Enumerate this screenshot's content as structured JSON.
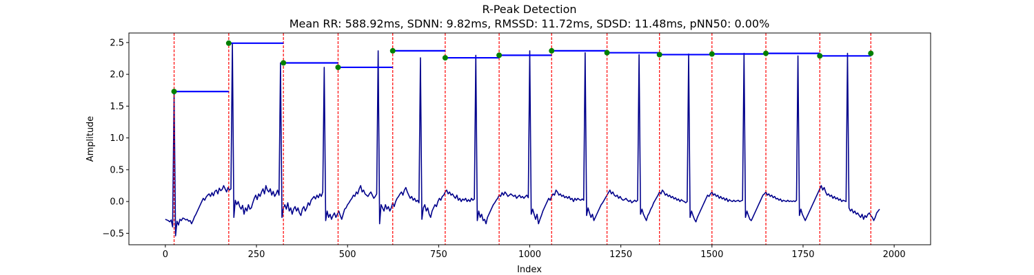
{
  "chart_data": {
    "type": "line",
    "title": "R-Peak Detection",
    "subtitle": "Mean RR: 588.92ms, SDNN: 9.82ms, RMSSD: 11.72ms, SDSD: 11.48ms, pNN50: 0.00%",
    "xlabel": "Index",
    "ylabel": "Amplitude",
    "xlim": [
      -100,
      2100
    ],
    "ylim": [
      -0.68,
      2.65
    ],
    "xticks": [
      0,
      250,
      500,
      750,
      1000,
      1250,
      1500,
      1750,
      2000
    ],
    "yticks": [
      -0.5,
      0.0,
      0.5,
      1.0,
      1.5,
      2.0,
      2.5
    ],
    "grid": false,
    "legend": "none",
    "colors": {
      "signal": "#00008b",
      "peak_line": "#ff0000",
      "peak_marker": "#008000",
      "rr_line": "#0000ff"
    },
    "signal": {
      "x_start": 0,
      "x_end": 2000,
      "step": 4,
      "y": [
        -0.28,
        -0.29,
        -0.3,
        -0.32,
        -0.29,
        -0.4,
        1.73,
        -0.54,
        -0.31,
        -0.37,
        -0.28,
        -0.3,
        -0.26,
        -0.27,
        -0.29,
        -0.28,
        -0.31,
        -0.3,
        -0.35,
        -0.3,
        -0.24,
        -0.2,
        -0.15,
        -0.1,
        -0.05,
        0.0,
        0.05,
        0.02,
        0.07,
        0.1,
        0.12,
        0.08,
        0.14,
        0.09,
        0.16,
        0.18,
        0.12,
        0.21,
        0.17,
        0.19,
        0.25,
        0.2,
        0.15,
        0.22,
        0.18,
        0.2,
        2.49,
        -0.25,
        0.02,
        -0.05,
        0.0,
        -0.08,
        -0.12,
        -0.06,
        -0.2,
        -0.1,
        -0.15,
        -0.05,
        -0.12,
        -0.1,
        -0.02,
        0.05,
        0.1,
        0.03,
        0.12,
        0.08,
        0.15,
        0.2,
        0.12,
        0.25,
        0.18,
        0.15,
        0.2,
        0.1,
        0.16,
        0.08,
        0.12,
        0.18,
        0.1,
        2.18,
        -0.25,
        -0.1,
        -0.05,
        -0.12,
        -0.02,
        -0.15,
        -0.1,
        -0.2,
        -0.12,
        -0.08,
        -0.15,
        -0.1,
        -0.18,
        -0.22,
        -0.12,
        -0.08,
        -0.15,
        -0.1,
        -0.02,
        -0.06,
        0.02,
        0.05,
        0.08,
        0.04,
        0.1,
        0.06,
        0.12,
        0.08,
        0.15,
        2.11,
        -0.3,
        -0.15,
        -0.25,
        -0.2,
        -0.28,
        -0.22,
        -0.18,
        -0.25,
        -0.2,
        -0.15,
        -0.22,
        -0.28,
        -0.2,
        -0.12,
        -0.1,
        -0.05,
        -0.02,
        0.02,
        0.05,
        0.1,
        0.08,
        0.15,
        0.12,
        0.2,
        0.25,
        0.15,
        0.18,
        0.12,
        0.1,
        0.08,
        0.12,
        0.15,
        0.1,
        0.05,
        0.08,
        0.12,
        2.37,
        -0.35,
        -0.05,
        -0.1,
        -0.15,
        -0.05,
        -0.12,
        -0.08,
        -0.15,
        -0.1,
        -0.02,
        -0.08,
        0.0,
        0.05,
        0.08,
        0.12,
        0.15,
        0.1,
        0.18,
        0.22,
        0.15,
        0.1,
        0.05,
        0.08,
        0.02,
        0.05,
        0.0,
        0.02,
        -0.02,
        2.26,
        -0.28,
        -0.1,
        -0.05,
        -0.15,
        -0.1,
        -0.2,
        -0.25,
        -0.15,
        -0.1,
        -0.05,
        -0.08,
        0.0,
        0.05,
        0.02,
        0.08,
        0.1,
        0.15,
        0.18,
        0.12,
        0.15,
        0.1,
        0.12,
        0.08,
        0.05,
        0.1,
        0.02,
        0.05,
        0.0,
        0.04,
        0.02,
        0.05,
        0.0,
        0.03,
        0.0,
        0.05,
        0.02,
        0.04,
        2.3,
        -0.3,
        -0.15,
        -0.25,
        -0.2,
        -0.3,
        -0.28,
        -0.35,
        -0.25,
        -0.2,
        -0.15,
        -0.1,
        -0.05,
        -0.02,
        0.02,
        0.05,
        0.1,
        0.08,
        0.14,
        0.1,
        0.15,
        0.12,
        0.08,
        0.1,
        0.12,
        0.1,
        0.08,
        0.1,
        0.05,
        0.08,
        0.1,
        0.06,
        0.08,
        0.05,
        0.08,
        0.1,
        0.06,
        2.37,
        -0.2,
        -0.12,
        -0.2,
        -0.28,
        -0.2,
        -0.35,
        -0.28,
        -0.22,
        -0.15,
        -0.1,
        -0.05,
        0.0,
        0.05,
        0.02,
        0.08,
        0.12,
        0.1,
        0.18,
        0.15,
        0.1,
        0.12,
        0.08,
        0.1,
        0.06,
        0.08,
        0.05,
        0.08,
        0.03,
        0.05,
        0.0,
        0.05,
        0.02,
        0.05,
        0.03,
        0.02,
        0.04,
        0.02,
        2.34,
        -0.22,
        -0.1,
        -0.18,
        -0.25,
        -0.2,
        -0.3,
        -0.25,
        -0.2,
        -0.15,
        -0.1,
        -0.05,
        -0.02,
        0.02,
        0.06,
        0.1,
        0.14,
        0.18,
        0.12,
        0.15,
        0.1,
        0.08,
        0.1,
        0.05,
        0.08,
        0.04,
        0.02,
        0.03,
        0.05,
        0.02,
        0.0,
        0.02,
        -0.02,
        0.0,
        0.02,
        0.0,
        0.02,
        2.31,
        -0.2,
        -0.12,
        -0.2,
        -0.25,
        -0.3,
        -0.22,
        -0.18,
        -0.12,
        -0.08,
        -0.02,
        0.02,
        0.06,
        0.1,
        0.15,
        0.12,
        0.18,
        0.15,
        0.1,
        0.12,
        0.08,
        0.1,
        0.06,
        0.08,
        0.04,
        0.06,
        0.02,
        0.04,
        0.0,
        0.03,
        0.01,
        0.0,
        -0.02,
        0.0,
        2.32,
        -0.25,
        -0.15,
        -0.22,
        -0.28,
        -0.32,
        -0.25,
        -0.2,
        -0.15,
        -0.1,
        -0.05,
        0.0,
        0.05,
        0.1,
        0.08,
        0.12,
        0.15,
        0.1,
        0.12,
        0.08,
        0.1,
        0.05,
        0.08,
        0.04,
        0.06,
        0.02,
        0.05,
        0.0,
        0.03,
        0.01,
        0.0,
        0.02,
        0.0,
        0.01,
        0.02,
        0.0,
        0.01,
        0.02,
        2.33,
        -0.25,
        -0.15,
        -0.22,
        -0.28,
        -0.3,
        -0.25,
        -0.2,
        -0.15,
        -0.1,
        -0.05,
        0.0,
        0.05,
        0.1,
        0.12,
        0.15,
        0.1,
        0.12,
        0.08,
        0.1,
        0.06,
        0.08,
        0.04,
        0.05,
        0.02,
        0.04,
        0.0,
        0.02,
        0.01,
        0.0,
        0.02,
        0.0,
        0.01,
        0.0,
        0.01,
        0.0,
        0.02,
        2.29,
        -0.22,
        -0.12,
        -0.2,
        -0.25,
        -0.3,
        -0.25,
        -0.2,
        -0.15,
        -0.1,
        -0.05,
        0.0,
        0.05,
        0.1,
        0.15,
        0.2,
        0.25,
        0.18,
        0.22,
        0.15,
        0.1,
        0.12,
        0.08,
        0.1,
        0.05,
        0.08,
        0.04,
        0.06,
        0.02,
        0.04,
        0.0,
        0.02,
        0.01,
        0.0,
        2.33,
        -0.1,
        -0.15,
        -0.12,
        -0.18,
        -0.15,
        -0.2,
        -0.18,
        -0.22,
        -0.25,
        -0.2,
        -0.28,
        -0.22,
        -0.25,
        -0.2,
        -0.18,
        -0.22,
        -0.25,
        -0.3,
        -0.25,
        -0.18,
        -0.15,
        -0.12
      ]
    },
    "r_peaks": [
      {
        "x": 24,
        "y": 1.73
      },
      {
        "x": 174,
        "y": 2.49
      },
      {
        "x": 324,
        "y": 2.18
      },
      {
        "x": 474,
        "y": 2.11
      },
      {
        "x": 624,
        "y": 2.37
      },
      {
        "x": 768,
        "y": 2.26
      },
      {
        "x": 916,
        "y": 2.3
      },
      {
        "x": 1060,
        "y": 2.37
      },
      {
        "x": 1212,
        "y": 2.34
      },
      {
        "x": 1356,
        "y": 2.31
      },
      {
        "x": 1500,
        "y": 2.32
      },
      {
        "x": 1648,
        "y": 2.33
      },
      {
        "x": 1796,
        "y": 2.29
      },
      {
        "x": 1936,
        "y": 2.33
      }
    ]
  }
}
